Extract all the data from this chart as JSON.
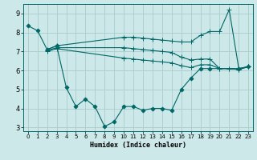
{
  "xlabel": "Humidex (Indice chaleur)",
  "xlim": [
    -0.5,
    23.5
  ],
  "ylim": [
    2.8,
    9.5
  ],
  "xticks": [
    0,
    1,
    2,
    3,
    4,
    5,
    6,
    7,
    8,
    9,
    10,
    11,
    12,
    13,
    14,
    15,
    16,
    17,
    18,
    19,
    20,
    21,
    22,
    23
  ],
  "yticks": [
    3,
    4,
    5,
    6,
    7,
    8,
    9
  ],
  "bg_color": "#cce8e8",
  "line_color": "#006666",
  "grid_color": "#aacccc",
  "lines": [
    {
      "x": [
        0,
        1,
        2,
        3,
        4,
        5,
        6,
        7,
        8,
        9,
        10,
        11,
        12,
        13,
        14,
        15,
        16,
        17,
        18,
        19,
        22,
        23
      ],
      "y": [
        8.35,
        8.1,
        7.1,
        7.3,
        5.1,
        4.1,
        4.5,
        4.1,
        3.05,
        3.3,
        4.1,
        4.1,
        3.9,
        4.0,
        4.0,
        3.9,
        5.0,
        5.6,
        6.1,
        6.1,
        6.1,
        6.2
      ],
      "marker": "D",
      "markersize": 2.5,
      "lw": 0.8
    },
    {
      "x": [
        2,
        3,
        10,
        11,
        12,
        13,
        14,
        15,
        16,
        17,
        18,
        19,
        20,
        21,
        22,
        23
      ],
      "y": [
        7.1,
        7.3,
        7.75,
        7.75,
        7.7,
        7.65,
        7.6,
        7.55,
        7.5,
        7.5,
        7.85,
        8.05,
        8.05,
        9.2,
        6.1,
        6.2
      ],
      "marker": "+",
      "markersize": 4,
      "lw": 0.8
    },
    {
      "x": [
        2,
        3,
        10,
        11,
        12,
        13,
        14,
        15,
        16,
        17,
        18,
        19,
        20,
        21,
        22,
        23
      ],
      "y": [
        7.05,
        7.2,
        7.2,
        7.15,
        7.1,
        7.05,
        7.0,
        6.95,
        6.7,
        6.55,
        6.6,
        6.6,
        6.1,
        6.1,
        6.05,
        6.2
      ],
      "marker": "+",
      "markersize": 4,
      "lw": 0.8
    },
    {
      "x": [
        2,
        3,
        10,
        11,
        12,
        13,
        14,
        15,
        16,
        17,
        18,
        19,
        20,
        21,
        22,
        23
      ],
      "y": [
        7.0,
        7.15,
        6.65,
        6.6,
        6.55,
        6.5,
        6.45,
        6.4,
        6.25,
        6.15,
        6.3,
        6.3,
        6.1,
        6.1,
        6.05,
        6.2
      ],
      "marker": "+",
      "markersize": 4,
      "lw": 0.8
    }
  ]
}
